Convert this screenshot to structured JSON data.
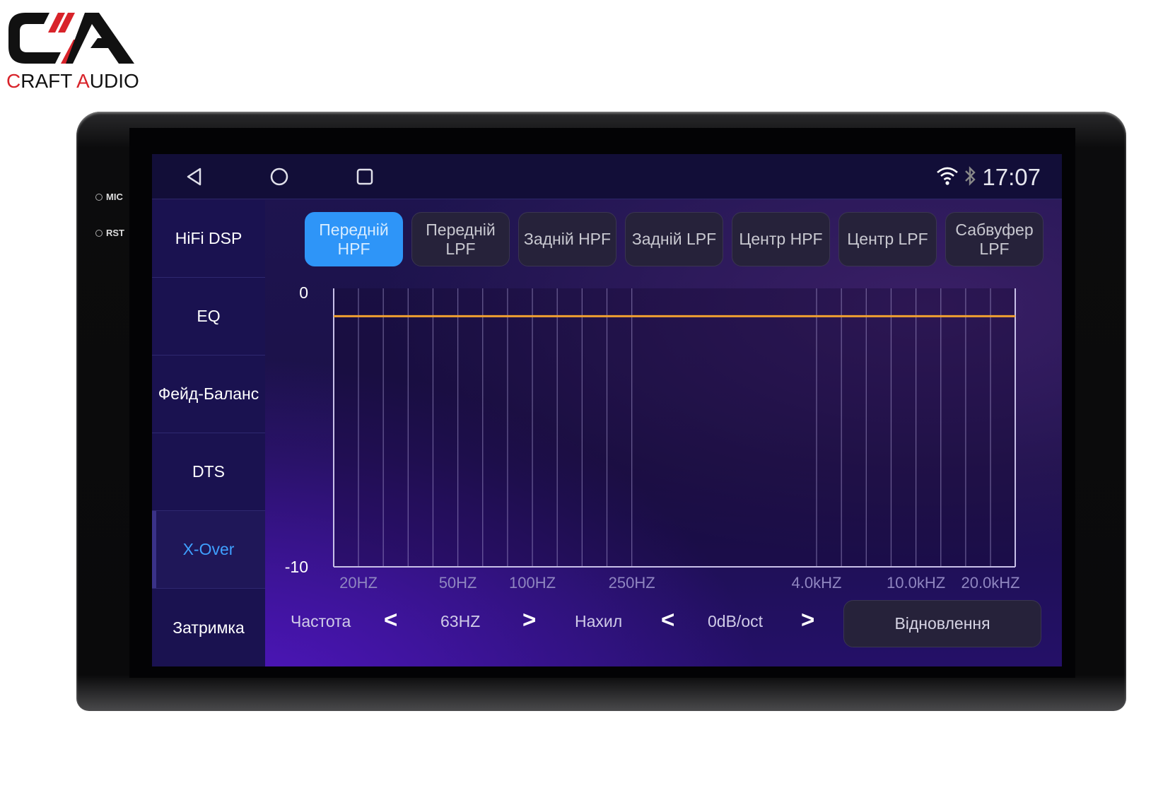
{
  "logo": {
    "text": "CRAFT AUDIO",
    "accent": "#d8232a"
  },
  "device": {
    "mic_label": "MIC",
    "rst_label": "RST"
  },
  "statusbar": {
    "time": "17:07",
    "icons": [
      "back-icon",
      "home-icon",
      "recents-icon",
      "wifi-icon",
      "bluetooth-icon"
    ]
  },
  "sidebar": {
    "items": [
      {
        "label": "HiFi DSP"
      },
      {
        "label": "EQ"
      },
      {
        "label": "Фейд-Баланс"
      },
      {
        "label": "DTS"
      },
      {
        "label": "X-Over",
        "active": true
      },
      {
        "label": "Затримка"
      }
    ]
  },
  "tabs": [
    {
      "label": "Передній HPF",
      "active": true
    },
    {
      "label": "Передній LPF"
    },
    {
      "label": "Задній HPF"
    },
    {
      "label": "Задній LPF"
    },
    {
      "label": "Центр HPF"
    },
    {
      "label": "Центр LPF"
    },
    {
      "label": "Сабвуфер LPF"
    }
  ],
  "chart_data": {
    "type": "line",
    "ylim": [
      -10,
      0
    ],
    "y_tick_labels": [
      "0",
      "-10"
    ],
    "x_scale": "log",
    "x_tick_labels": [
      "20HZ",
      "50HZ",
      "100HZ",
      "250HZ",
      "4.0kHZ",
      "10.0kHZ",
      "20.0kHZ"
    ],
    "gridlines_hz": [
      20,
      25,
      31.5,
      40,
      50,
      63,
      80,
      100,
      125,
      160,
      200,
      250,
      4000,
      5000,
      6300,
      8000,
      10000,
      12500,
      16000,
      20000
    ],
    "series": [
      {
        "color": "#f0a030",
        "x": [
          20,
          20000
        ],
        "y": [
          -1,
          -1
        ]
      }
    ],
    "grid": true
  },
  "controls": {
    "frequency_label": "Частота",
    "frequency_value": "63HZ",
    "slope_label": "Нахил",
    "slope_value": "0dB/oct",
    "prev": "<",
    "next": ">",
    "reset_label": "Відновлення"
  },
  "colors": {
    "active_tab": "#2e95f8",
    "active_sidebar_text": "#3fa0ff",
    "curve": "#f0a030"
  }
}
